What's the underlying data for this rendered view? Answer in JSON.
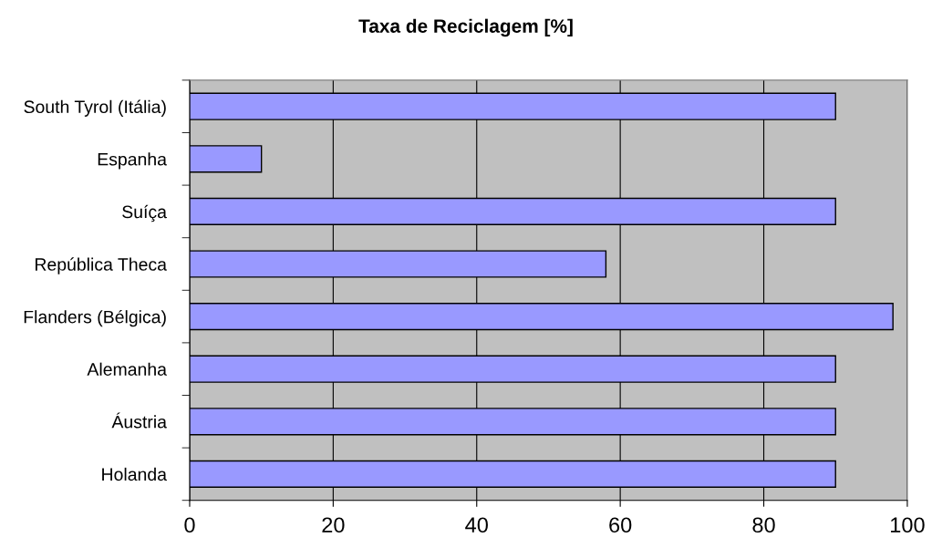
{
  "chart_data": {
    "type": "bar",
    "orientation": "horizontal",
    "title": "Taxa de Reciclagem [%]",
    "categories": [
      "South Tyrol (Itália)",
      "Espanha",
      "Suíça",
      "República Theca",
      "Flanders (Bélgica)",
      "Alemanha",
      "Áustria",
      "Holanda"
    ],
    "values": [
      90,
      10,
      90,
      58,
      98,
      90,
      90,
      90
    ],
    "color": "#9999ff",
    "xlim": [
      0,
      100
    ],
    "xticks": [
      0,
      20,
      40,
      60,
      80,
      100
    ],
    "grid": "x"
  }
}
